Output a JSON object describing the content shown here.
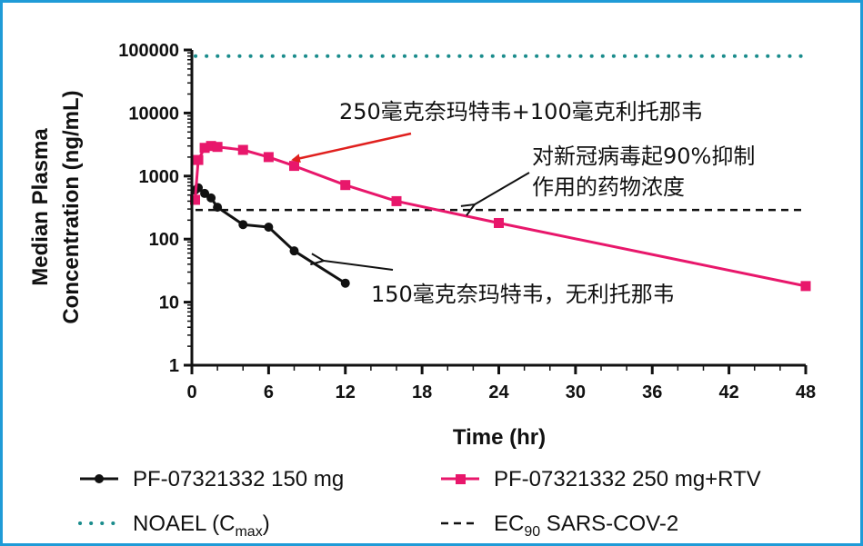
{
  "chart_data": {
    "type": "line",
    "title": "",
    "xlabel": "Time (hr)",
    "ylabel": [
      "Median Plasma",
      "Concentration (ng/mL)"
    ],
    "xlim": [
      0,
      48
    ],
    "ylim": [
      1,
      100000
    ],
    "yscale": "log",
    "xticks": [
      "0",
      "6",
      "12",
      "18",
      "24",
      "30",
      "36",
      "42",
      "48"
    ],
    "yticks": [
      "1",
      "10",
      "100",
      "1000",
      "10000",
      "100000"
    ],
    "series": [
      {
        "name": "PF-07321332 150 mg",
        "color": "#111111",
        "marker": "circle",
        "x": [
          0.25,
          0.5,
          1,
          1.5,
          2,
          4,
          6,
          8,
          12
        ],
        "y": [
          600,
          650,
          530,
          450,
          320,
          170,
          155,
          65,
          20
        ]
      },
      {
        "name": "PF-07321332 250 mg+RTV",
        "color": "#e8176b",
        "marker": "square",
        "x": [
          0.25,
          0.5,
          1,
          1.5,
          2,
          4,
          6,
          8,
          12,
          16,
          24,
          48
        ],
        "y": [
          420,
          1800,
          2800,
          3000,
          2900,
          2600,
          2000,
          1450,
          720,
          400,
          180,
          18
        ]
      }
    ],
    "reference_lines": [
      {
        "name": "NOAEL (C",
        "subscript": "max",
        "suffix": ")",
        "y": 80000,
        "color": "#1a8c8c",
        "style": "dotted"
      },
      {
        "name": "EC",
        "subscript": "90",
        "suffix": " SARS-COV-2",
        "y": 290,
        "color": "#111111",
        "style": "dashed"
      }
    ],
    "annotations": [
      {
        "text": "250毫克奈玛特韦+100毫克利托那韦",
        "color": "#e0201e",
        "points_to": {
          "x": 8,
          "y": 1600
        }
      },
      {
        "text_lines": [
          "对新冠病毒起90%抑制",
          "作用的药物浓度"
        ],
        "color": "#111111",
        "points_to": {
          "x": 22,
          "y": 290
        }
      },
      {
        "text": "150毫克奈玛特韦，无利托那韦",
        "color": "#111111",
        "points_to": {
          "x": 10,
          "y": 37
        }
      }
    ],
    "legend_position": "bottom"
  }
}
